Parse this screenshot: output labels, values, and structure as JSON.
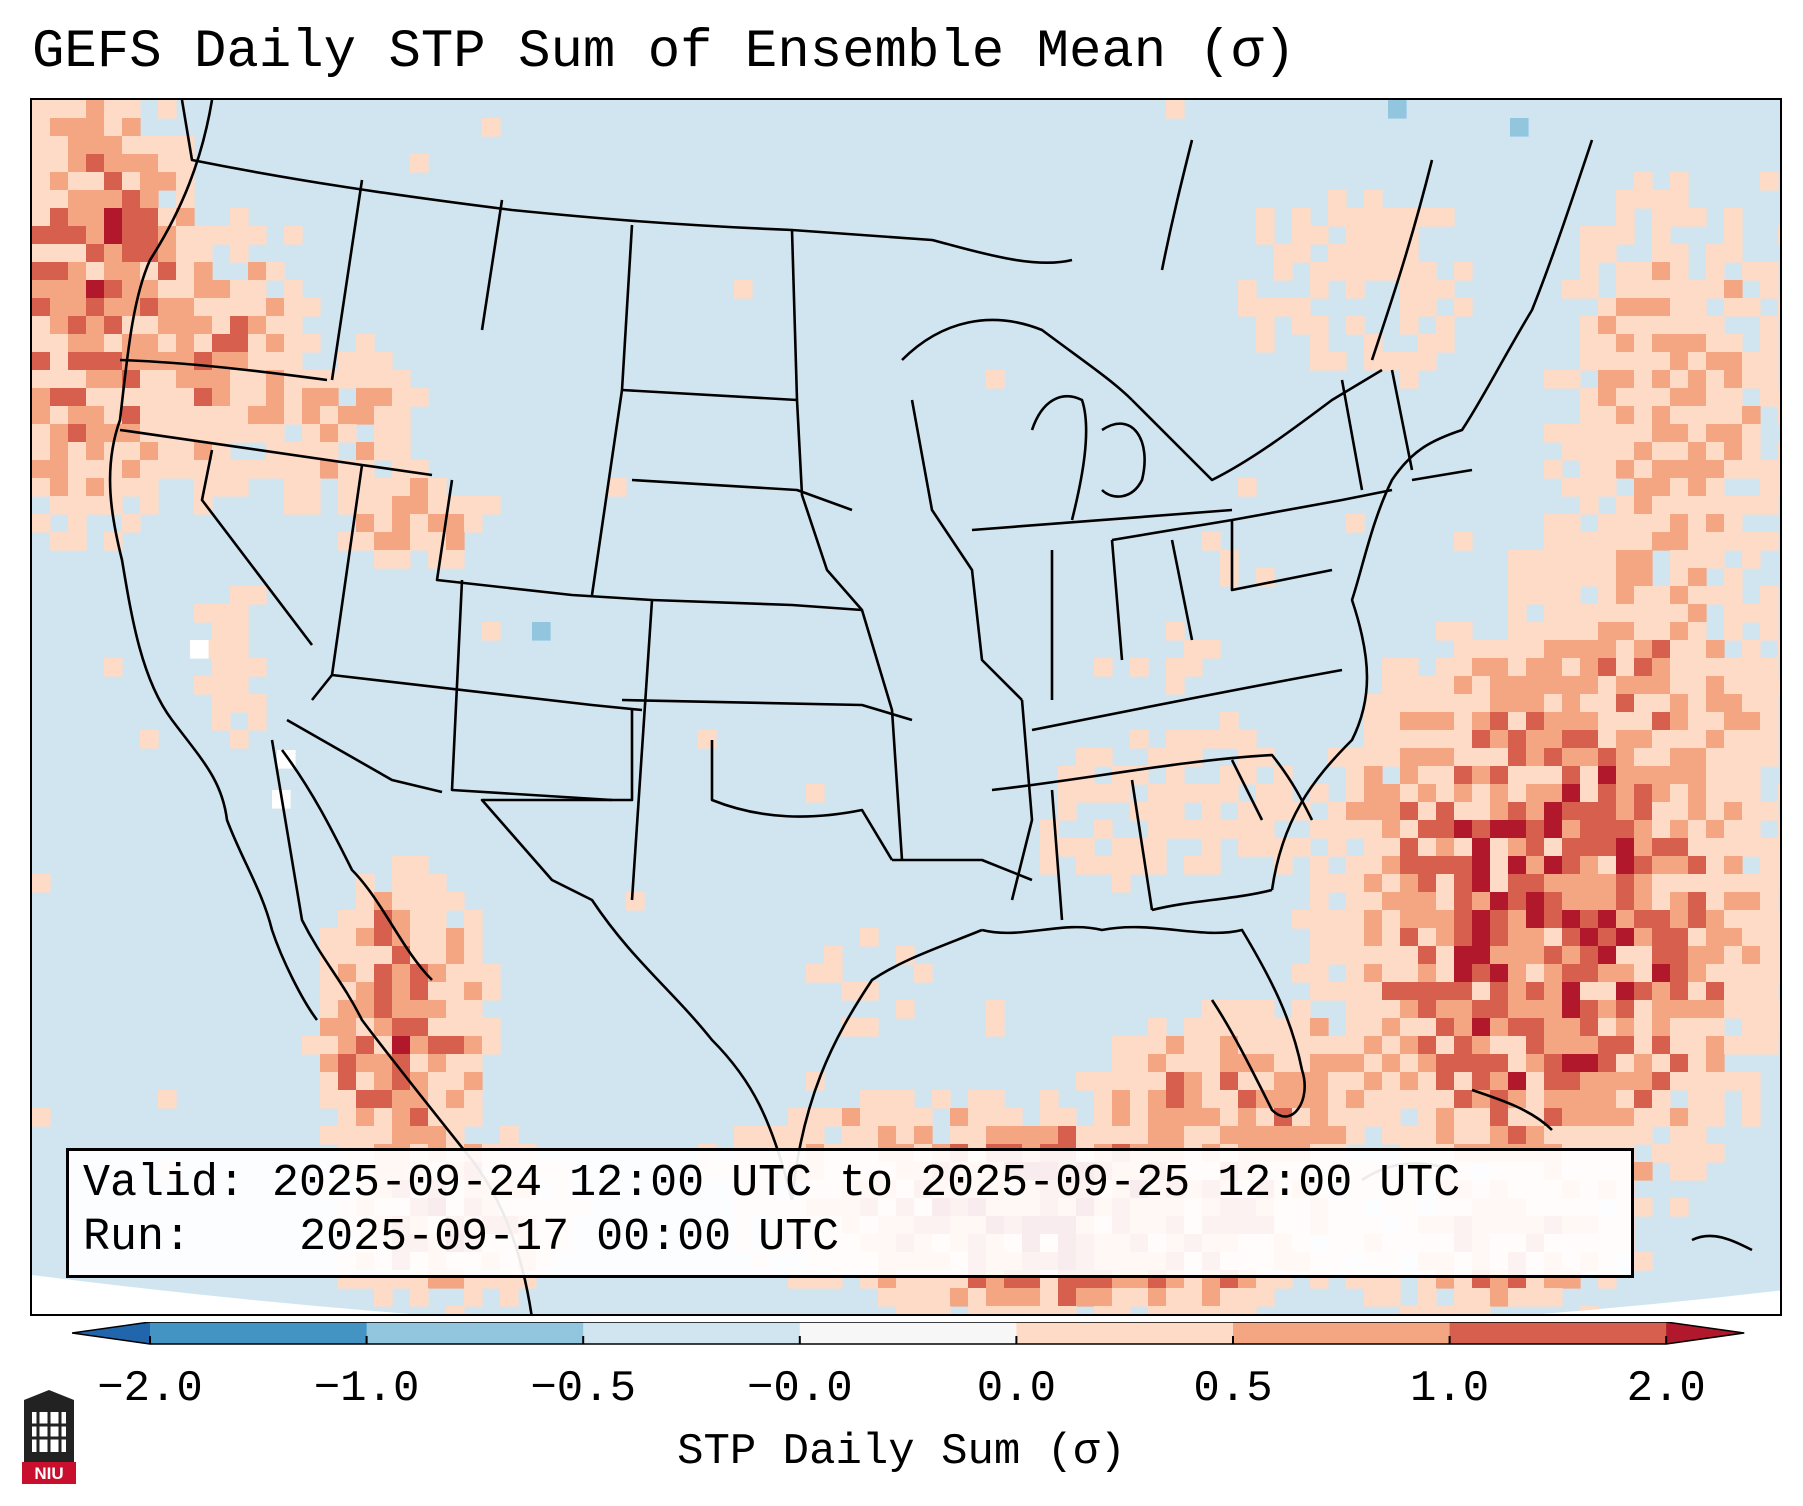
{
  "title": "GEFS Daily STP Sum of Ensemble Mean (σ)",
  "info": {
    "valid_label": "Valid:",
    "valid_value": "2025-09-24 12:00 UTC to 2025-09-25 12:00 UTC",
    "run_label": "Run:",
    "run_value": "2025-09-17 00:00 UTC"
  },
  "colorbar": {
    "label": "STP Daily Sum (σ)",
    "ticks": [
      "−2.0",
      "−1.0",
      "−0.5",
      "−0.0",
      "0.0",
      "0.5",
      "1.0",
      "2.0"
    ],
    "bins": [
      {
        "range": "-2.0 to -1.0",
        "color": "#4393c3"
      },
      {
        "range": "-1.0 to -0.5",
        "color": "#92c5de"
      },
      {
        "range": "-0.5 to -0.0",
        "color": "#d1e5f0"
      },
      {
        "range": "-0.0 to 0.0",
        "color": "#f7f7f7"
      },
      {
        "range": "0.0 to 0.5",
        "color": "#fddbc7"
      },
      {
        "range": "0.5 to 1.0",
        "color": "#f4a582"
      },
      {
        "range": "1.0 to 2.0",
        "color": "#d6604d"
      },
      {
        "range": "> 2.0",
        "color": "#b2182b"
      }
    ],
    "under_color": "#2166ac",
    "over_color": "#b2182b"
  },
  "map": {
    "background_color": "#d1e5f0",
    "ocean_outside_color": "#ffffff",
    "regions": [
      {
        "name": "northwest-pacific-coast",
        "level": "0.0 to 2.0+"
      },
      {
        "name": "idaho-nevada",
        "level": "0.0 to 2.0+"
      },
      {
        "name": "mexico-sierra-madre",
        "level": "1.0 to 2.0+"
      },
      {
        "name": "gulf-of-mexico",
        "level": "0.5 to 2.0+"
      },
      {
        "name": "southeast-atlantic",
        "level": "1.0 to 2.0+"
      },
      {
        "name": "north-atlantic",
        "level": "0.0 to 2.0+"
      },
      {
        "name": "ohio-valley",
        "level": "0.0 to 0.5"
      }
    ]
  },
  "logo": {
    "text": "NIU",
    "icon": "niu-logo-icon"
  }
}
